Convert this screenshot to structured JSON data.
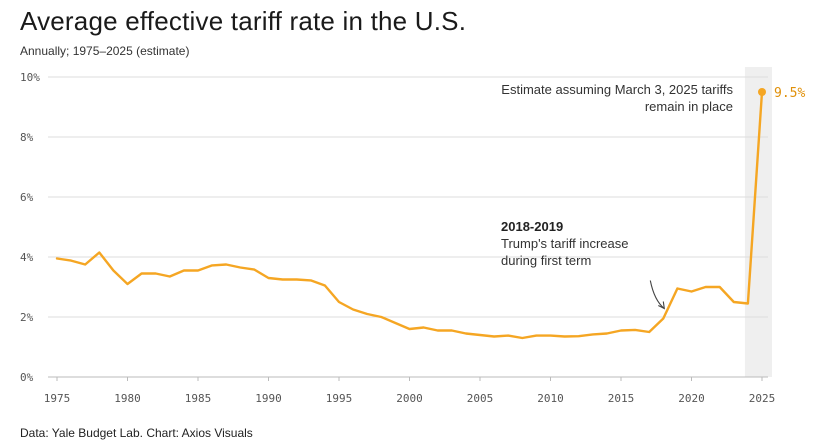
{
  "title": "Average effective tariff rate in the U.S.",
  "subtitle": "Annually; 1975–2025 (estimate)",
  "source": "Data: Yale Budget Lab. Chart: Axios Visuals",
  "colors": {
    "line": "#f5a623",
    "grid": "#dddddd",
    "highlight_band": "#efefef",
    "end_label": "#e0900a"
  },
  "chart_data": {
    "type": "line",
    "title": "Average effective tariff rate in the U.S.",
    "subtitle": "Annually; 1975–2025 (estimate)",
    "xlabel": "",
    "ylabel": "",
    "xlim": [
      1975,
      2025
    ],
    "ylim": [
      0,
      10
    ],
    "grid": true,
    "y_ticks": [
      0,
      2,
      4,
      6,
      8,
      10
    ],
    "y_tick_labels": [
      "0%",
      "2%",
      "4%",
      "6%",
      "8%",
      "10%"
    ],
    "x_ticks": [
      1975,
      1980,
      1985,
      1990,
      1995,
      2000,
      2005,
      2010,
      2015,
      2020,
      2025
    ],
    "x_tick_labels": [
      "1975",
      "1980",
      "1985",
      "1990",
      "1995",
      "2000",
      "2005",
      "2010",
      "2015",
      "2020",
      "2025"
    ],
    "highlight_range": [
      2024,
      2025
    ],
    "series": [
      {
        "name": "Average effective tariff rate",
        "x": [
          1975,
          1976,
          1977,
          1978,
          1979,
          1980,
          1981,
          1982,
          1983,
          1984,
          1985,
          1986,
          1987,
          1988,
          1989,
          1990,
          1991,
          1992,
          1993,
          1994,
          1995,
          1996,
          1997,
          1998,
          1999,
          2000,
          2001,
          2002,
          2003,
          2004,
          2005,
          2006,
          2007,
          2008,
          2009,
          2010,
          2011,
          2012,
          2013,
          2014,
          2015,
          2016,
          2017,
          2018,
          2019,
          2020,
          2021,
          2022,
          2023,
          2024,
          2025
        ],
        "values": [
          3.95,
          3.88,
          3.75,
          4.15,
          3.55,
          3.1,
          3.45,
          3.45,
          3.35,
          3.55,
          3.55,
          3.72,
          3.75,
          3.65,
          3.58,
          3.3,
          3.25,
          3.25,
          3.22,
          3.05,
          2.5,
          2.25,
          2.1,
          2.0,
          1.8,
          1.6,
          1.65,
          1.55,
          1.55,
          1.45,
          1.4,
          1.35,
          1.38,
          1.3,
          1.38,
          1.38,
          1.35,
          1.36,
          1.42,
          1.45,
          1.55,
          1.57,
          1.5,
          1.95,
          2.95,
          2.85,
          3.0,
          3.0,
          2.5,
          2.45,
          9.5
        ]
      }
    ],
    "end_point": {
      "x": 2025,
      "value": 9.5,
      "label": "9.5%"
    },
    "annotations": [
      {
        "title": "2018-2019",
        "lines": [
          "Trump's tariff increase",
          "during first term"
        ],
        "target_x": 2018
      },
      {
        "title": "",
        "lines": [
          "Estimate assuming March 3, 2025 tariffs",
          "remain in place"
        ],
        "target_x": 2025
      }
    ]
  }
}
